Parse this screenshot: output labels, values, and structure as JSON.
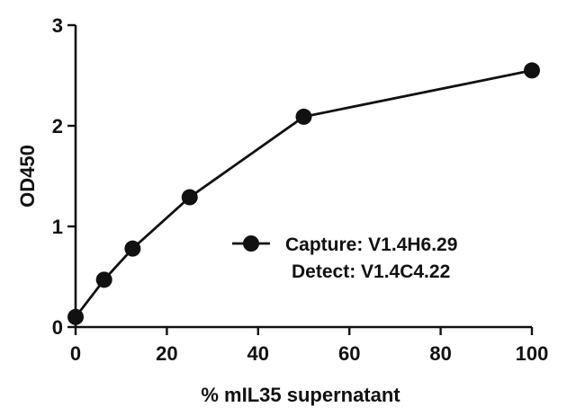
{
  "chart_data": {
    "type": "line",
    "title": "",
    "xlabel": "% mIL35 supernatant",
    "ylabel": "OD450",
    "xlim": [
      0,
      100
    ],
    "ylim": [
      0,
      3
    ],
    "xticks": [
      0,
      20,
      40,
      60,
      80,
      100
    ],
    "yticks": [
      0,
      1,
      2,
      3
    ],
    "xtick_labels": [
      "0",
      "20",
      "40",
      "60",
      "80",
      "100"
    ],
    "ytick_labels": [
      "0",
      "1",
      "2",
      "3"
    ],
    "grid": false,
    "legend_position": "center-right",
    "series": [
      {
        "name": "Capture: V1.4H6.29",
        "name_line2": "Detect: V1.4C4.22",
        "color": "#111111",
        "marker": "circle",
        "x": [
          0,
          6.25,
          12.5,
          25,
          50,
          100
        ],
        "y": [
          0.1,
          0.47,
          0.78,
          1.29,
          2.09,
          2.55
        ]
      }
    ]
  }
}
